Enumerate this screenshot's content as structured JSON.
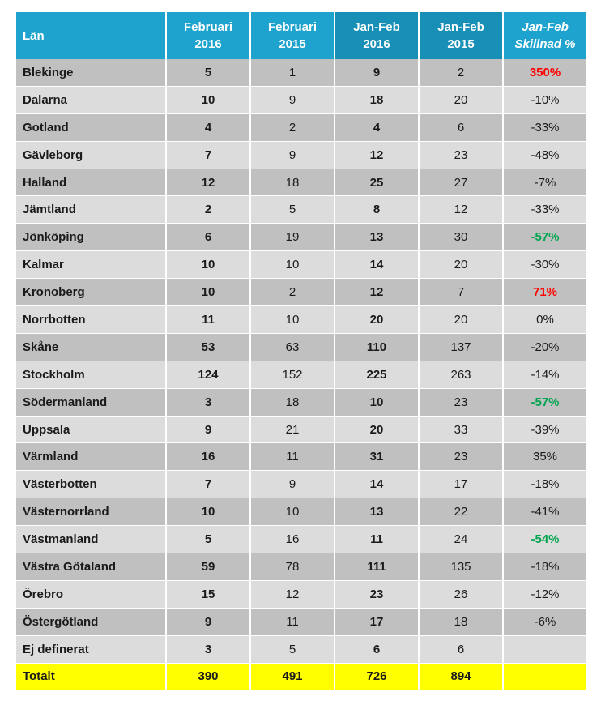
{
  "columns": [
    "Län",
    "Februari 2016",
    "Februari 2015",
    "Jan-Feb 2016",
    "Jan-Feb 2015",
    "Jan-Feb Skillnad %"
  ],
  "header_lines": [
    [
      "Län"
    ],
    [
      "Februari",
      "2016"
    ],
    [
      "Februari",
      "2015"
    ],
    [
      "Jan-Feb",
      "2016"
    ],
    [
      "Jan-Feb",
      "2015"
    ],
    [
      "Jan-Feb",
      "Skillnad %"
    ]
  ],
  "rows": [
    {
      "lan": "Blekinge",
      "feb2016": "5",
      "feb2015": "1",
      "janfeb2016": "9",
      "janfeb2015": "2",
      "diff": "350%",
      "diff_color": "red"
    },
    {
      "lan": "Dalarna",
      "feb2016": "10",
      "feb2015": "9",
      "janfeb2016": "18",
      "janfeb2015": "20",
      "diff": "-10%",
      "diff_color": ""
    },
    {
      "lan": "Gotland",
      "feb2016": "4",
      "feb2015": "2",
      "janfeb2016": "4",
      "janfeb2015": "6",
      "diff": "-33%",
      "diff_color": ""
    },
    {
      "lan": "Gävleborg",
      "feb2016": "7",
      "feb2015": "9",
      "janfeb2016": "12",
      "janfeb2015": "23",
      "diff": "-48%",
      "diff_color": ""
    },
    {
      "lan": "Halland",
      "feb2016": "12",
      "feb2015": "18",
      "janfeb2016": "25",
      "janfeb2015": "27",
      "diff": "-7%",
      "diff_color": ""
    },
    {
      "lan": "Jämtland",
      "feb2016": "2",
      "feb2015": "5",
      "janfeb2016": "8",
      "janfeb2015": "12",
      "diff": "-33%",
      "diff_color": ""
    },
    {
      "lan": "Jönköping",
      "feb2016": "6",
      "feb2015": "19",
      "janfeb2016": "13",
      "janfeb2015": "30",
      "diff": "-57%",
      "diff_color": "green"
    },
    {
      "lan": "Kalmar",
      "feb2016": "10",
      "feb2015": "10",
      "janfeb2016": "14",
      "janfeb2015": "20",
      "diff": "-30%",
      "diff_color": ""
    },
    {
      "lan": "Kronoberg",
      "feb2016": "10",
      "feb2015": "2",
      "janfeb2016": "12",
      "janfeb2015": "7",
      "diff": "71%",
      "diff_color": "red"
    },
    {
      "lan": "Norrbotten",
      "feb2016": "11",
      "feb2015": "10",
      "janfeb2016": "20",
      "janfeb2015": "20",
      "diff": "0%",
      "diff_color": ""
    },
    {
      "lan": "Skåne",
      "feb2016": "53",
      "feb2015": "63",
      "janfeb2016": "110",
      "janfeb2015": "137",
      "diff": "-20%",
      "diff_color": ""
    },
    {
      "lan": "Stockholm",
      "feb2016": "124",
      "feb2015": "152",
      "janfeb2016": "225",
      "janfeb2015": "263",
      "diff": "-14%",
      "diff_color": ""
    },
    {
      "lan": "Södermanland",
      "feb2016": "3",
      "feb2015": "18",
      "janfeb2016": "10",
      "janfeb2015": "23",
      "diff": "-57%",
      "diff_color": "green"
    },
    {
      "lan": "Uppsala",
      "feb2016": "9",
      "feb2015": "21",
      "janfeb2016": "20",
      "janfeb2015": "33",
      "diff": "-39%",
      "diff_color": ""
    },
    {
      "lan": "Värmland",
      "feb2016": "16",
      "feb2015": "11",
      "janfeb2016": "31",
      "janfeb2015": "23",
      "diff": "35%",
      "diff_color": ""
    },
    {
      "lan": "Västerbotten",
      "feb2016": "7",
      "feb2015": "9",
      "janfeb2016": "14",
      "janfeb2015": "17",
      "diff": "-18%",
      "diff_color": ""
    },
    {
      "lan": "Västernorrland",
      "feb2016": "10",
      "feb2015": "10",
      "janfeb2016": "13",
      "janfeb2015": "22",
      "diff": "-41%",
      "diff_color": ""
    },
    {
      "lan": "Västmanland",
      "feb2016": "5",
      "feb2015": "16",
      "janfeb2016": "11",
      "janfeb2015": "24",
      "diff": "-54%",
      "diff_color": "green"
    },
    {
      "lan": "Västra Götaland",
      "feb2016": "59",
      "feb2015": "78",
      "janfeb2016": "111",
      "janfeb2015": "135",
      "diff": "-18%",
      "diff_color": ""
    },
    {
      "lan": "Örebro",
      "feb2016": "15",
      "feb2015": "12",
      "janfeb2016": "23",
      "janfeb2015": "26",
      "diff": "-12%",
      "diff_color": ""
    },
    {
      "lan": "Östergötland",
      "feb2016": "9",
      "feb2015": "11",
      "janfeb2016": "17",
      "janfeb2015": "18",
      "diff": "-6%",
      "diff_color": ""
    },
    {
      "lan": "Ej definerat",
      "feb2016": "3",
      "feb2015": "5",
      "janfeb2016": "6",
      "janfeb2015": "6",
      "diff": "",
      "diff_color": ""
    }
  ],
  "total": {
    "lan": "Totalt",
    "feb2016": "390",
    "feb2015": "491",
    "janfeb2016": "726",
    "janfeb2015": "894",
    "diff": ""
  },
  "colors": {
    "header_bg": "#1ea3cf",
    "header_bg_dark": "#188fb6",
    "row_dark": "#c0c0c0",
    "row_light": "#dcdcdc",
    "total_bg": "#ffff00",
    "increase": "#ff0000",
    "decrease": "#00a550"
  }
}
